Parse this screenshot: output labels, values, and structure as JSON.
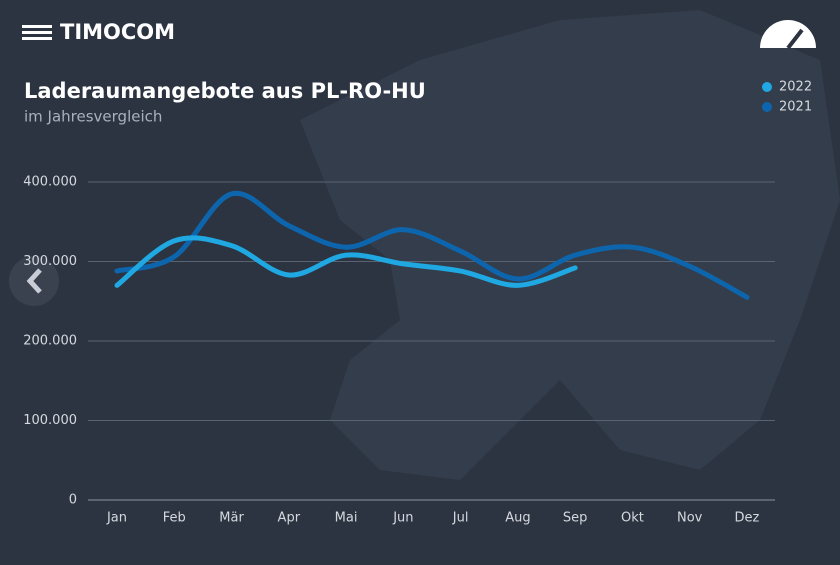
{
  "brand": "TIMOCOM",
  "chart_data": {
    "type": "line",
    "title": "Laderaumangebote aus PL-RO-HU",
    "subtitle": "im Jahresvergleich",
    "categories": [
      "Jan",
      "Feb",
      "Mär",
      "Apr",
      "Mai",
      "Jun",
      "Jul",
      "Aug",
      "Sep",
      "Okt",
      "Nov",
      "Dez"
    ],
    "series": [
      {
        "name": "2022",
        "color": "#1fa8e2",
        "values": [
          270000,
          326000,
          320000,
          283000,
          308000,
          297000,
          288000,
          270000,
          292000,
          null,
          null,
          null
        ]
      },
      {
        "name": "2021",
        "color": "#0d66ad",
        "values": [
          288000,
          306000,
          385000,
          345000,
          318000,
          340000,
          313000,
          278000,
          308000,
          318000,
          294000,
          255000
        ]
      }
    ],
    "ylim": [
      0,
      400000
    ],
    "yticks": [
      0,
      {
        "value": 100000,
        "label": "100.000"
      },
      {
        "value": 200000,
        "label": "200.000"
      },
      {
        "value": 300000,
        "label": "300.000"
      },
      {
        "value": 400000,
        "label": "400.000"
      }
    ],
    "grid": true,
    "legend": "top-right"
  }
}
